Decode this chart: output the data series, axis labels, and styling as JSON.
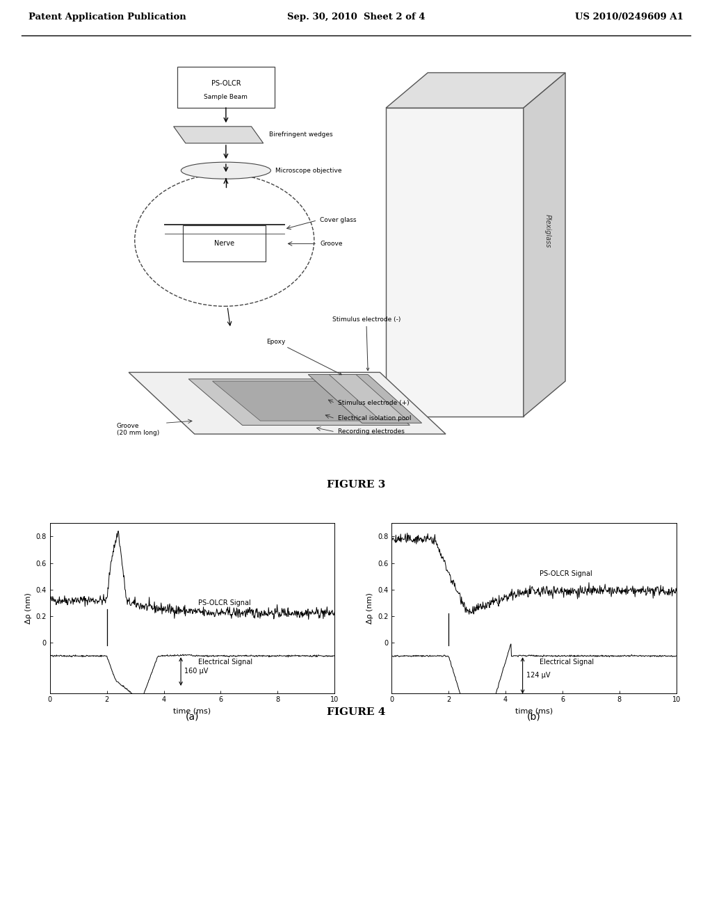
{
  "background_color": "#ffffff",
  "header_left": "Patent Application Publication",
  "header_center": "Sep. 30, 2010  Sheet 2 of 4",
  "header_right": "US 2010/0249609 A1",
  "figure3_caption": "FIGURE 3",
  "figure4_caption": "FIGURE 4",
  "subplot_a_label": "(a)",
  "subplot_b_label": "(b)",
  "ylabel": "Δρ (nm)",
  "xlabel": "time (ms)",
  "signal_a_annotation": "160 μV",
  "signal_b_annotation": "124 μV",
  "ps_olcr_label": "PS-OLCR Signal",
  "elec_label": "Electrical Signal"
}
